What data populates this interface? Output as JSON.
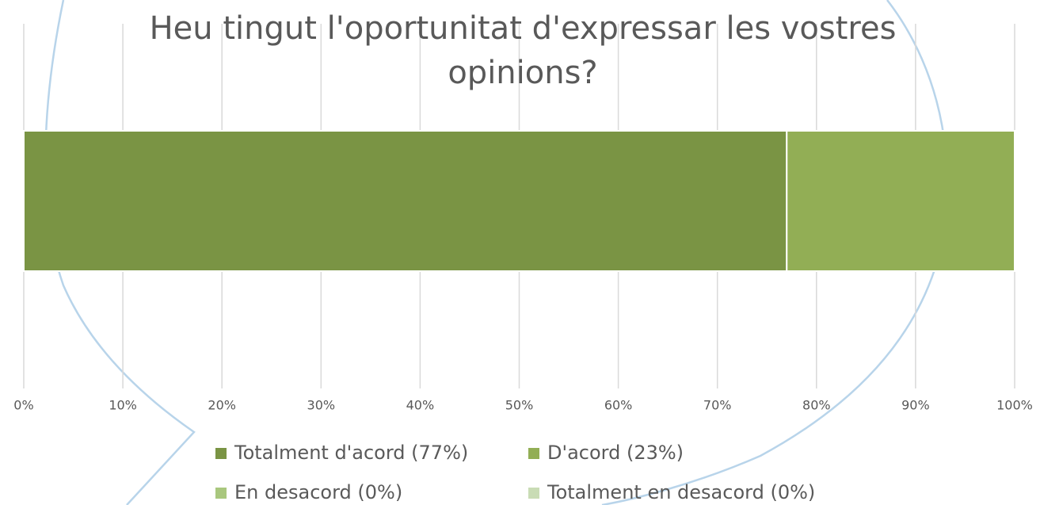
{
  "chart_data": {
    "type": "stacked-barh",
    "title": "Heu tingut l'oportunitat d'expressar les vostres opinions?",
    "categories": [
      null
    ],
    "series": [
      {
        "name": "Totalment d'acord (77%)",
        "color": "#7a9444",
        "values": [
          77
        ]
      },
      {
        "name": "D'acord (23%)",
        "color": "#92ae55",
        "values": [
          23
        ]
      },
      {
        "name": "En desacord (0%)",
        "color": "#a9c77e",
        "values": [
          0
        ]
      },
      {
        "name": "Totalment en desacord (0%)",
        "color": "#c9dcb5",
        "values": [
          0
        ]
      }
    ],
    "xlim": [
      0,
      100
    ],
    "xticks": [
      {
        "value": 0,
        "label": "0%"
      },
      {
        "value": 10,
        "label": "10%"
      },
      {
        "value": 20,
        "label": "20%"
      },
      {
        "value": 30,
        "label": "30%"
      },
      {
        "value": 40,
        "label": "40%"
      },
      {
        "value": 50,
        "label": "50%"
      },
      {
        "value": 60,
        "label": "60%"
      },
      {
        "value": 70,
        "label": "70%"
      },
      {
        "value": 80,
        "label": "80%"
      },
      {
        "value": 90,
        "label": "90%"
      },
      {
        "value": 100,
        "label": "100%"
      }
    ],
    "grid": true,
    "legend": "bottom"
  }
}
